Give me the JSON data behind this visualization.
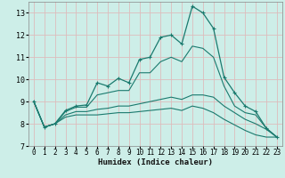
{
  "xlabel": "Humidex (Indice chaleur)",
  "background_color": "#cdeee8",
  "grid_color": "#ddbcbc",
  "line_color": "#1a7a6e",
  "x_values": [
    0,
    1,
    2,
    3,
    4,
    5,
    6,
    7,
    8,
    9,
    10,
    11,
    12,
    13,
    14,
    15,
    16,
    17,
    18,
    19,
    20,
    21,
    22,
    23
  ],
  "line1": [
    9.0,
    7.85,
    8.0,
    8.6,
    8.8,
    8.85,
    9.85,
    9.7,
    10.05,
    9.85,
    10.9,
    11.0,
    11.9,
    12.0,
    11.6,
    13.3,
    13.0,
    12.3,
    10.1,
    9.4,
    8.8,
    8.55,
    7.8,
    7.4
  ],
  "line2": [
    9.0,
    7.85,
    8.0,
    8.55,
    8.75,
    8.75,
    9.3,
    9.4,
    9.5,
    9.5,
    10.3,
    10.3,
    10.8,
    11.0,
    10.8,
    11.5,
    11.4,
    11.0,
    9.7,
    8.8,
    8.5,
    8.4,
    7.8,
    7.4
  ],
  "line3": [
    9.0,
    7.85,
    8.0,
    8.4,
    8.55,
    8.55,
    8.65,
    8.7,
    8.8,
    8.8,
    8.9,
    9.0,
    9.1,
    9.2,
    9.1,
    9.3,
    9.3,
    9.2,
    8.8,
    8.5,
    8.2,
    8.0,
    7.75,
    7.4
  ],
  "line4": [
    9.0,
    7.85,
    8.0,
    8.3,
    8.4,
    8.4,
    8.4,
    8.45,
    8.5,
    8.5,
    8.55,
    8.6,
    8.65,
    8.7,
    8.6,
    8.8,
    8.7,
    8.5,
    8.2,
    7.95,
    7.7,
    7.5,
    7.4,
    7.4
  ],
  "ylim": [
    7,
    13.5
  ],
  "yticks": [
    7,
    8,
    9,
    10,
    11,
    12,
    13
  ],
  "xlim": [
    -0.5,
    23.5
  ],
  "xticks": [
    0,
    1,
    2,
    3,
    4,
    5,
    6,
    7,
    8,
    9,
    10,
    11,
    12,
    13,
    14,
    15,
    16,
    17,
    18,
    19,
    20,
    21,
    22,
    23
  ],
  "tick_fontsize": 5.5,
  "xlabel_fontsize": 6.5
}
